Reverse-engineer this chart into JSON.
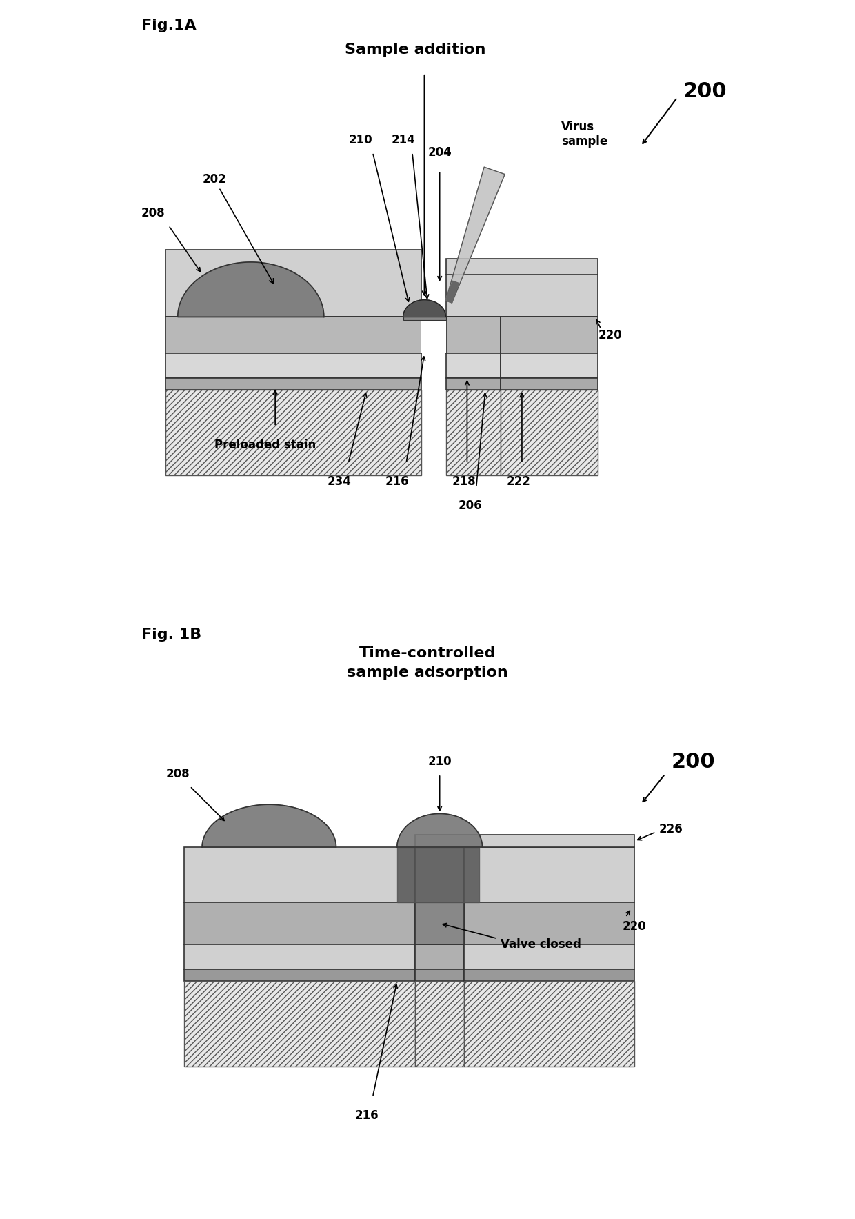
{
  "bg_color": "#ffffff",
  "fig_width": 12.4,
  "fig_height": 17.67,
  "fig1a_label": "Fig.1A",
  "fig1b_label": "Fig. 1B",
  "ref_200_label": "200",
  "title_1a": "Sample addition",
  "title_1b": "Time-controlled\nsample adsorption",
  "virus_label": "Virus\nsample",
  "preloaded_label": "Preloaded stain",
  "valve_label": "Valve closed",
  "labels_1a": [
    "208",
    "202",
    "210",
    "214",
    "204",
    "234",
    "216",
    "218",
    "206",
    "222",
    "220"
  ],
  "labels_1b": [
    "208",
    "210",
    "216",
    "220",
    "226",
    "200"
  ],
  "color_dark_gray": "#555555",
  "color_medium_gray": "#888888",
  "color_light_gray": "#bbbbbb",
  "color_very_light_gray": "#dddddd",
  "color_hatch": "#aaaaaa",
  "color_white": "#ffffff",
  "color_black": "#000000",
  "color_dark_brown": "#444444",
  "color_mid_gray": "#999999"
}
